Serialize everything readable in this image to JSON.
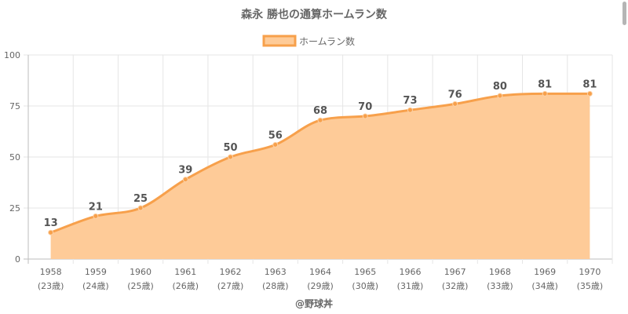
{
  "chart_data": {
    "type": "area",
    "title": "森永 勝也の通算ホームラン数",
    "legend": {
      "label": "ホームラン数",
      "placement": "top-center"
    },
    "categories": [
      "1958",
      "1959",
      "1960",
      "1961",
      "1962",
      "1963",
      "1964",
      "1965",
      "1966",
      "1967",
      "1968",
      "1969",
      "1970"
    ],
    "category_sublabels": [
      "(23歳)",
      "(24歳)",
      "(25歳)",
      "(26歳)",
      "(27歳)",
      "(28歳)",
      "(29歳)",
      "(30歳)",
      "(31歳)",
      "(32歳)",
      "(33歳)",
      "(34歳)",
      "(35歳)"
    ],
    "series": [
      {
        "name": "ホームラン数",
        "values": [
          13,
          21,
          25,
          39,
          50,
          56,
          68,
          70,
          73,
          76,
          80,
          81,
          81
        ]
      }
    ],
    "y_ticks": [
      "0",
      "25",
      "50",
      "75",
      "100"
    ],
    "ylim": [
      0,
      100
    ],
    "grid": true,
    "colors": {
      "line": "#f7a04b",
      "fill": "#fecb98",
      "grid": "#e6e6e6",
      "axis": "#bdbdbd"
    }
  },
  "footer": {
    "credit": "@野球丼"
  }
}
